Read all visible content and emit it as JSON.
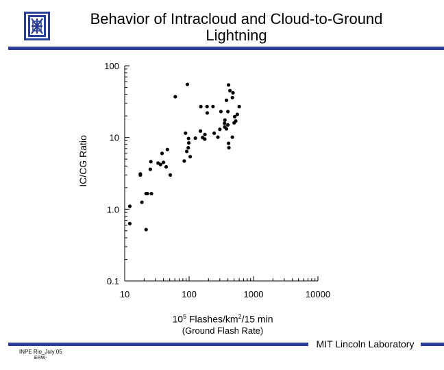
{
  "header": {
    "title_line1": "Behavior of Intracloud and Cloud-to-Ground",
    "title_line2": "Lightning"
  },
  "colors": {
    "accent_rule": "#2a3f9a",
    "marker": "#000000",
    "background": "#ffffff"
  },
  "icons": {
    "logo": "lab-crest-icon"
  },
  "chart_data": {
    "type": "scatter",
    "title": "",
    "xlabel": "10⁵ Flashes/km²/15 min",
    "xlabel_sub": "(Ground Flash Rate)",
    "ylabel": "IC/CG Ratio",
    "xscale": "log",
    "yscale": "log",
    "xlim": [
      10,
      10000
    ],
    "ylim": [
      0.1,
      100
    ],
    "x_ticks": [
      10,
      100,
      1000,
      10000
    ],
    "x_tick_labels": [
      "10",
      "100",
      "1000",
      "10000"
    ],
    "y_ticks": [
      0.1,
      1,
      10,
      100
    ],
    "y_tick_labels": [
      "0.1",
      "1.0",
      "10",
      "100"
    ],
    "grid": false,
    "legend": "none",
    "points": [
      [
        12,
        1.1
      ],
      [
        12,
        0.63
      ],
      [
        21.5,
        0.52
      ],
      [
        18.5,
        1.25
      ],
      [
        17.5,
        3.0
      ],
      [
        17.5,
        3.1
      ],
      [
        21.5,
        1.65
      ],
      [
        22.5,
        1.65
      ],
      [
        26,
        1.65
      ],
      [
        25,
        3.6
      ],
      [
        25.5,
        4.6
      ],
      [
        33,
        4.4
      ],
      [
        36,
        4.2
      ],
      [
        38,
        6.0
      ],
      [
        40,
        4.5
      ],
      [
        44,
        3.9
      ],
      [
        46,
        6.8
      ],
      [
        51,
        3.0
      ],
      [
        61,
        37
      ],
      [
        84,
        4.7
      ],
      [
        88,
        11.5
      ],
      [
        94,
        55
      ],
      [
        92,
        6.4
      ],
      [
        97,
        7.2
      ],
      [
        99,
        8.4
      ],
      [
        98,
        9.7
      ],
      [
        104,
        5.4
      ],
      [
        125,
        9.8
      ],
      [
        150,
        12.3
      ],
      [
        162,
        10.0
      ],
      [
        176,
        11.0
      ],
      [
        175,
        9.5
      ],
      [
        152,
        27
      ],
      [
        191,
        22
      ],
      [
        190,
        27
      ],
      [
        235,
        27
      ],
      [
        245,
        11.5
      ],
      [
        280,
        10.1
      ],
      [
        300,
        13.0
      ],
      [
        312,
        23
      ],
      [
        358,
        14.0
      ],
      [
        355,
        15.8
      ],
      [
        360,
        17.5
      ],
      [
        380,
        13.2
      ],
      [
        400,
        15.0
      ],
      [
        410,
        8.3
      ],
      [
        415,
        7.2
      ],
      [
        470,
        10.1
      ],
      [
        380,
        33
      ],
      [
        400,
        23
      ],
      [
        410,
        54
      ],
      [
        430,
        45
      ],
      [
        470,
        36
      ],
      [
        480,
        42
      ],
      [
        500,
        16.0
      ],
      [
        510,
        19.5
      ],
      [
        530,
        17.0
      ],
      [
        560,
        21
      ],
      [
        600,
        27
      ]
    ]
  },
  "footer": {
    "lab_name": "MIT Lincoln Laboratory",
    "event": "INPE Rio_July 05",
    "initials": "ERW-"
  }
}
